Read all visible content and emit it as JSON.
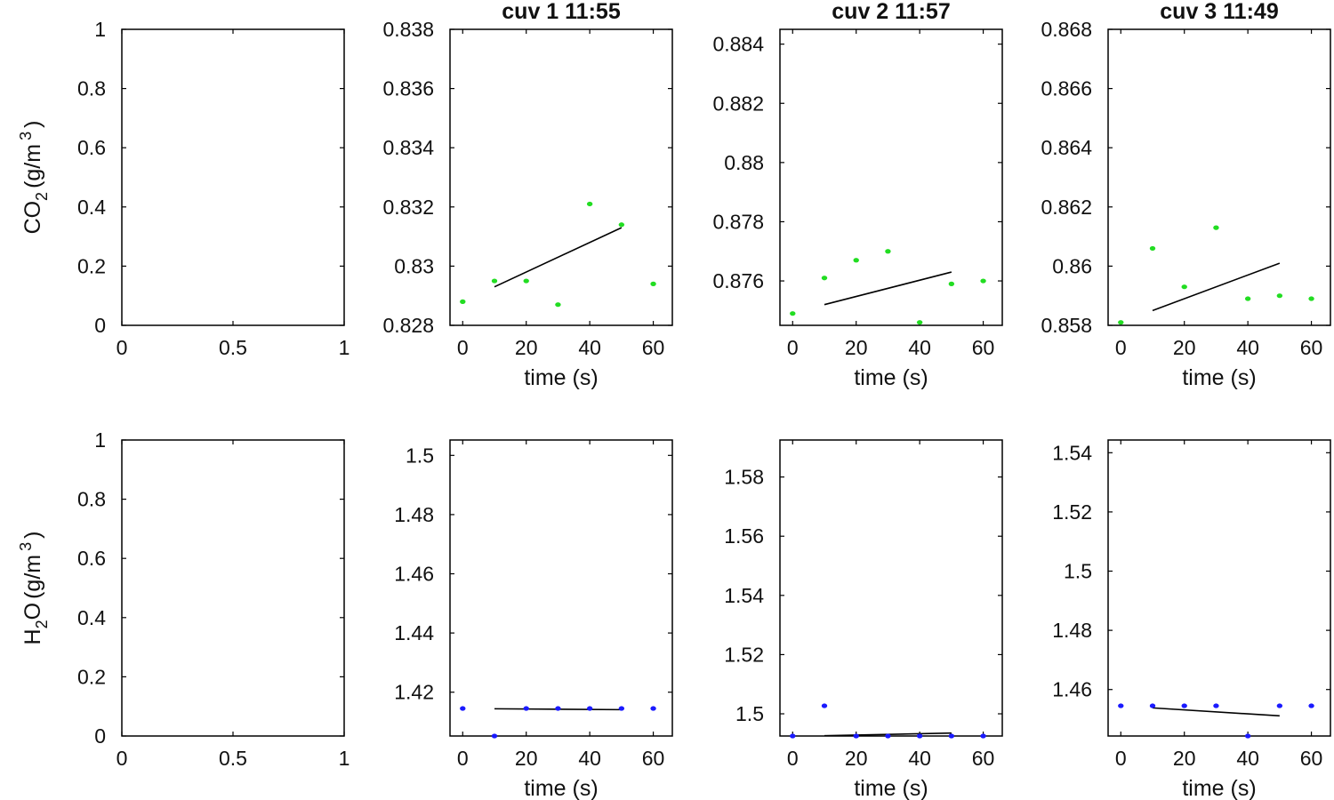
{
  "chart_data": [
    {
      "id": "co2-empty",
      "type": "scatter",
      "title": "",
      "ylabel_main": "CO",
      "ylabel_sub": "2",
      "ylabel_unit": "(g/m",
      "ylabel_sup": "3",
      "ylabel_close": ")",
      "xlabel": "",
      "xlim": [
        0,
        1
      ],
      "ylim": [
        0,
        1
      ],
      "xticks": [
        0,
        0.5,
        1
      ],
      "xtick_labels": [
        "0",
        "0.5",
        "1"
      ],
      "yticks": [
        0,
        0.2,
        0.4,
        0.6,
        0.8,
        1
      ],
      "ytick_labels": [
        "0",
        "0.2",
        "0.4",
        "0.6",
        "0.8",
        "1"
      ],
      "points": {
        "x": [],
        "y": [],
        "color": "#22dd22"
      },
      "fit": {
        "x": [],
        "y": []
      }
    },
    {
      "id": "co2-cuv1",
      "type": "scatter",
      "title": "cuv 1 11:55",
      "xlabel": "time (s)",
      "xlim": [
        -4,
        66
      ],
      "ylim": [
        0.828,
        0.838
      ],
      "xticks": [
        0,
        20,
        40,
        60
      ],
      "xtick_labels": [
        "0",
        "20",
        "40",
        "60"
      ],
      "yticks": [
        0.828,
        0.83,
        0.832,
        0.834,
        0.836,
        0.838
      ],
      "ytick_labels": [
        "0.828",
        "0.83",
        "0.832",
        "0.834",
        "0.836",
        "0.838"
      ],
      "points": {
        "x": [
          0,
          10,
          20,
          30,
          40,
          50,
          60
        ],
        "y": [
          0.8288,
          0.8295,
          0.8295,
          0.8287,
          0.8321,
          0.8314,
          0.8294
        ],
        "color": "#22dd22"
      },
      "fit": {
        "x": [
          10,
          50
        ],
        "y": [
          0.8293,
          0.8313
        ]
      }
    },
    {
      "id": "co2-cuv2",
      "type": "scatter",
      "title": "cuv 2 11:57",
      "xlabel": "time (s)",
      "xlim": [
        -4,
        66
      ],
      "ylim": [
        0.8745,
        0.8845
      ],
      "xticks": [
        0,
        20,
        40,
        60
      ],
      "xtick_labels": [
        "0",
        "20",
        "40",
        "60"
      ],
      "yticks": [
        0.876,
        0.878,
        0.88,
        0.882,
        0.884
      ],
      "ytick_labels": [
        "0.876",
        "0.878",
        "0.88",
        "0.882",
        "0.884"
      ],
      "points": {
        "x": [
          0,
          10,
          20,
          30,
          40,
          50,
          60
        ],
        "y": [
          0.8749,
          0.8761,
          0.8767,
          0.877,
          0.8746,
          0.8759,
          0.876
        ],
        "color": "#22dd22"
      },
      "fit": {
        "x": [
          10,
          50
        ],
        "y": [
          0.8752,
          0.8763
        ]
      }
    },
    {
      "id": "co2-cuv3",
      "type": "scatter",
      "title": "cuv 3 11:49",
      "xlabel": "time (s)",
      "xlim": [
        -4,
        66
      ],
      "ylim": [
        0.858,
        0.868
      ],
      "xticks": [
        0,
        20,
        40,
        60
      ],
      "xtick_labels": [
        "0",
        "20",
        "40",
        "60"
      ],
      "yticks": [
        0.858,
        0.86,
        0.862,
        0.864,
        0.866,
        0.868
      ],
      "ytick_labels": [
        "0.858",
        "0.86",
        "0.862",
        "0.864",
        "0.866",
        "0.868"
      ],
      "points": {
        "x": [
          0,
          10,
          20,
          30,
          40,
          50,
          60
        ],
        "y": [
          0.8581,
          0.8606,
          0.8593,
          0.8613,
          0.8589,
          0.859,
          0.8589
        ],
        "color": "#22dd22"
      },
      "fit": {
        "x": [
          10,
          50
        ],
        "y": [
          0.8585,
          0.8601
        ]
      }
    },
    {
      "id": "h2o-empty",
      "type": "scatter",
      "title": "",
      "ylabel_main": "H",
      "ylabel_sub": "2",
      "ylabel_after": "O",
      "ylabel_unit": "(g/m",
      "ylabel_sup": "3",
      "ylabel_close": ")",
      "xlabel": "",
      "xlim": [
        0,
        1
      ],
      "ylim": [
        0,
        1
      ],
      "xticks": [
        0,
        0.5,
        1
      ],
      "xtick_labels": [
        "0",
        "0.5",
        "1"
      ],
      "yticks": [
        0,
        0.2,
        0.4,
        0.6,
        0.8,
        1
      ],
      "ytick_labels": [
        "0",
        "0.2",
        "0.4",
        "0.6",
        "0.8",
        "1"
      ],
      "points": {
        "x": [],
        "y": [],
        "color": "#1a1aff"
      },
      "fit": {
        "x": [],
        "y": []
      }
    },
    {
      "id": "h2o-cuv1",
      "type": "scatter",
      "title": "",
      "xlabel": "time (s)",
      "xlim": [
        -4,
        66
      ],
      "ylim": [
        1.4052,
        1.5052
      ],
      "xticks": [
        0,
        20,
        40,
        60
      ],
      "xtick_labels": [
        "0",
        "20",
        "40",
        "60"
      ],
      "yticks": [
        1.42,
        1.44,
        1.46,
        1.48,
        1.5
      ],
      "ytick_labels": [
        "1.42",
        "1.44",
        "1.46",
        "1.48",
        "1.5"
      ],
      "points": {
        "x": [
          0,
          10,
          20,
          30,
          40,
          50,
          60
        ],
        "y": [
          1.4145,
          1.4052,
          1.4145,
          1.4145,
          1.4145,
          1.4145,
          1.4145
        ],
        "color": "#1a1aff"
      },
      "fit": {
        "x": [
          10,
          50
        ],
        "y": [
          1.4144,
          1.4141
        ]
      }
    },
    {
      "id": "h2o-cuv2",
      "type": "scatter",
      "title": "",
      "xlabel": "time (s)",
      "xlim": [
        -4,
        66
      ],
      "ylim": [
        1.4925,
        1.5925
      ],
      "xticks": [
        0,
        20,
        40,
        60
      ],
      "xtick_labels": [
        "0",
        "20",
        "40",
        "60"
      ],
      "yticks": [
        1.5,
        1.52,
        1.54,
        1.56,
        1.58
      ],
      "ytick_labels": [
        "1.5",
        "1.52",
        "1.54",
        "1.56",
        "1.58"
      ],
      "points": {
        "x": [
          0,
          10,
          20,
          30,
          40,
          50,
          60
        ],
        "y": [
          1.4925,
          1.5027,
          1.4925,
          1.4925,
          1.4925,
          1.4925,
          1.4925
        ],
        "color": "#1a1aff"
      },
      "fit": {
        "x": [
          10,
          50
        ],
        "y": [
          1.4926,
          1.4935
        ]
      }
    },
    {
      "id": "h2o-cuv3",
      "type": "scatter",
      "title": "",
      "xlabel": "time (s)",
      "xlim": [
        -4,
        66
      ],
      "ylim": [
        1.4443,
        1.5443
      ],
      "xticks": [
        0,
        20,
        40,
        60
      ],
      "xtick_labels": [
        "0",
        "20",
        "40",
        "60"
      ],
      "yticks": [
        1.46,
        1.48,
        1.5,
        1.52,
        1.54
      ],
      "ytick_labels": [
        "1.46",
        "1.48",
        "1.5",
        "1.52",
        "1.54"
      ],
      "points": {
        "x": [
          0,
          10,
          20,
          30,
          40,
          50,
          60
        ],
        "y": [
          1.4545,
          1.4545,
          1.4545,
          1.4545,
          1.4443,
          1.4545,
          1.4545
        ],
        "color": "#1a1aff"
      },
      "fit": {
        "x": [
          10,
          50
        ],
        "y": [
          1.4538,
          1.4511
        ]
      }
    }
  ]
}
